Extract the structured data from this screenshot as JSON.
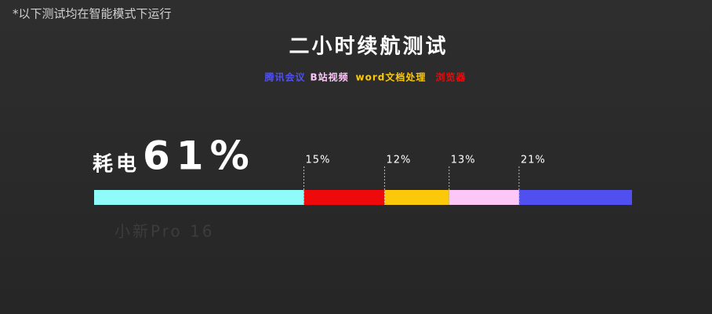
{
  "note": "*以下测试均在智能模式下运行",
  "chart_data": {
    "type": "bar",
    "orientation": "horizontal",
    "stacked": true,
    "title": "二小时续航测试",
    "annotation": "耗电",
    "total": {
      "value": 61,
      "label": "61%"
    },
    "watermark": "小新Pro 16",
    "xlim": [
      0,
      100
    ],
    "series": [
      {
        "name": null,
        "color": "#8ffcfa",
        "values": [
          39
        ]
      },
      {
        "name": "浏览器",
        "color": "#ee0a0a",
        "values": [
          15
        ],
        "value_labels": [
          "15%"
        ]
      },
      {
        "name": "word文档处理",
        "color": "#fbc80a",
        "values": [
          12
        ],
        "value_labels": [
          "12%"
        ]
      },
      {
        "name": "B站视频",
        "color": "#fcc6f6",
        "values": [
          13
        ],
        "value_labels": [
          "13%"
        ]
      },
      {
        "name": "腾讯会议",
        "color": "#5050f0",
        "values": [
          21
        ],
        "value_labels": [
          "21%"
        ]
      }
    ]
  }
}
